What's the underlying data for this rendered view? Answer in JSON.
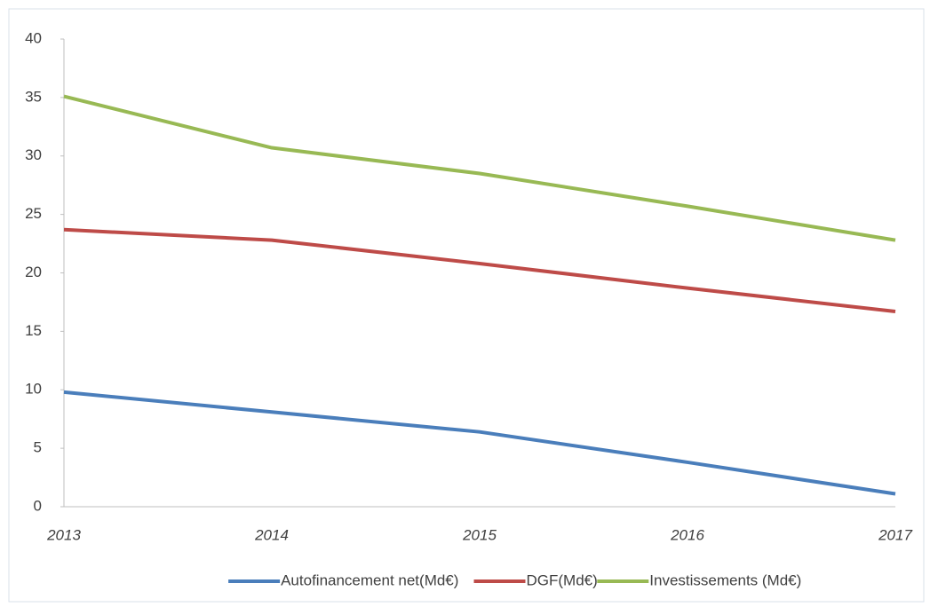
{
  "chart_data": {
    "type": "line",
    "categories": [
      "2013",
      "2014",
      "2015",
      "2016",
      "2017"
    ],
    "series": [
      {
        "name": "Autofinancement net(Md€)",
        "color": "#4a7ebb",
        "values": [
          9.8,
          8.1,
          6.4,
          3.8,
          1.1
        ]
      },
      {
        "name": "DGF(Md€)",
        "color": "#be4b48",
        "values": [
          23.7,
          22.8,
          20.8,
          18.7,
          16.7
        ]
      },
      {
        "name": "Investissements (Md€)",
        "color": "#98b954",
        "values": [
          35.1,
          30.7,
          28.5,
          25.7,
          22.8
        ]
      }
    ],
    "ylim": [
      0,
      40
    ],
    "yticks": [
      0,
      5,
      10,
      15,
      20,
      25,
      30,
      35,
      40
    ],
    "grid": false,
    "legend": "bottom"
  }
}
